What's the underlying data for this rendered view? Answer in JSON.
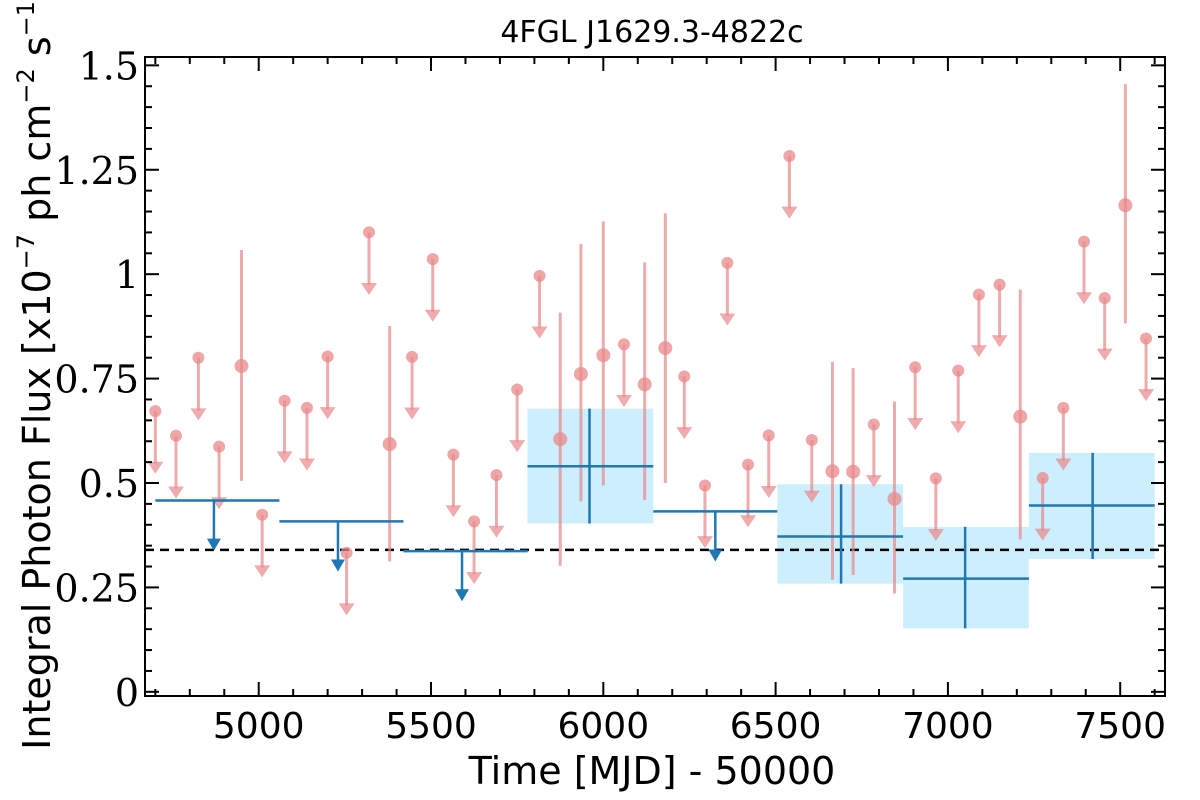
{
  "chart_data": {
    "type": "scatter",
    "title": "4FGL J1629.3-4822c",
    "xlabel": "Time [MJD] - 50000",
    "ylabel_parts": [
      "Integral Photon Flux [x10",
      "−7",
      " ph cm",
      "−2",
      " s",
      "−1",
      "]"
    ],
    "xlim": [
      4670,
      7630
    ],
    "ylim": [
      -0.01,
      1.52
    ],
    "x_ticks": [
      5000,
      5500,
      6000,
      6500,
      7000,
      7500
    ],
    "x_tick_labels": [
      "5000",
      "5500",
      "6000",
      "6500",
      "7000",
      "7500"
    ],
    "y_ticks": [
      0,
      0.25,
      0.5,
      0.75,
      1,
      1.25,
      1.5
    ],
    "y_tick_labels": [
      "0",
      "0.25",
      "0.5",
      "0.75",
      "1",
      "1.25",
      "1.5"
    ],
    "reference_flux": 0.34,
    "colors": {
      "short_bins": "#e8888a",
      "long_bins": "#1f77b4",
      "error_box": "#cdeefc",
      "reference_line": "#000000"
    },
    "short_bins_upper_limits": [
      {
        "x": 4700,
        "y": 0.672
      },
      {
        "x": 4760,
        "y": 0.613
      },
      {
        "x": 4825,
        "y": 0.8
      },
      {
        "x": 4885,
        "y": 0.587
      },
      {
        "x": 5010,
        "y": 0.424
      },
      {
        "x": 5075,
        "y": 0.697
      },
      {
        "x": 5140,
        "y": 0.68
      },
      {
        "x": 5200,
        "y": 0.803
      },
      {
        "x": 5255,
        "y": 0.333
      },
      {
        "x": 5320,
        "y": 1.1
      },
      {
        "x": 5445,
        "y": 0.802
      },
      {
        "x": 5505,
        "y": 1.036
      },
      {
        "x": 5565,
        "y": 0.568
      },
      {
        "x": 5625,
        "y": 0.408
      },
      {
        "x": 5690,
        "y": 0.519
      },
      {
        "x": 5750,
        "y": 0.724
      },
      {
        "x": 5815,
        "y": 0.996
      },
      {
        "x": 6060,
        "y": 0.832
      },
      {
        "x": 6235,
        "y": 0.755
      },
      {
        "x": 6295,
        "y": 0.494
      },
      {
        "x": 6360,
        "y": 1.027
      },
      {
        "x": 6420,
        "y": 0.544
      },
      {
        "x": 6480,
        "y": 0.614
      },
      {
        "x": 6540,
        "y": 1.283
      },
      {
        "x": 6605,
        "y": 0.603
      },
      {
        "x": 6785,
        "y": 0.64
      },
      {
        "x": 6905,
        "y": 0.777
      },
      {
        "x": 6965,
        "y": 0.511
      },
      {
        "x": 7030,
        "y": 0.769
      },
      {
        "x": 7090,
        "y": 0.951
      },
      {
        "x": 7150,
        "y": 0.975
      },
      {
        "x": 7275,
        "y": 0.512
      },
      {
        "x": 7335,
        "y": 0.68
      },
      {
        "x": 7395,
        "y": 1.078
      },
      {
        "x": 7455,
        "y": 0.943
      },
      {
        "x": 7575,
        "y": 0.846
      }
    ],
    "short_bins_detections": [
      {
        "x": 4950,
        "y": 0.78,
        "y_low": 0.505,
        "y_high": 1.058
      },
      {
        "x": 5380,
        "y": 0.593,
        "y_low": 0.312,
        "y_high": 0.876
      },
      {
        "x": 5875,
        "y": 0.605,
        "y_low": 0.302,
        "y_high": 0.908
      },
      {
        "x": 5935,
        "y": 0.761,
        "y_low": 0.456,
        "y_high": 1.072
      },
      {
        "x": 6000,
        "y": 0.806,
        "y_low": 0.494,
        "y_high": 1.126
      },
      {
        "x": 6120,
        "y": 0.736,
        "y_low": 0.459,
        "y_high": 1.028
      },
      {
        "x": 6180,
        "y": 0.823,
        "y_low": 0.5,
        "y_high": 1.146
      },
      {
        "x": 6665,
        "y": 0.528,
        "y_low": 0.268,
        "y_high": 0.79
      },
      {
        "x": 6725,
        "y": 0.527,
        "y_low": 0.28,
        "y_high": 0.775
      },
      {
        "x": 6845,
        "y": 0.462,
        "y_low": 0.235,
        "y_high": 0.695
      },
      {
        "x": 7210,
        "y": 0.659,
        "y_low": 0.365,
        "y_high": 0.963
      },
      {
        "x": 7515,
        "y": 1.165,
        "y_low": 0.882,
        "y_high": 1.455
      }
    ],
    "long_bins_upper_limits": [
      {
        "x_start": 4700,
        "x_end": 5060,
        "x_arrow": 4870,
        "y": 0.458
      },
      {
        "x_start": 5060,
        "x_end": 5420,
        "x_arrow": 5230,
        "y": 0.408
      },
      {
        "x_start": 5420,
        "x_end": 5780,
        "x_arrow": 5590,
        "y": 0.337
      },
      {
        "x_start": 6145,
        "x_end": 6505,
        "x_arrow": 6325,
        "y": 0.432
      }
    ],
    "long_bins_detections": [
      {
        "x_start": 5780,
        "x_end": 6145,
        "x": 5960,
        "y": 0.54,
        "y_low": 0.403,
        "y_high": 0.678
      },
      {
        "x_start": 6505,
        "x_end": 6870,
        "x": 6690,
        "y": 0.372,
        "y_low": 0.259,
        "y_high": 0.497
      },
      {
        "x_start": 6870,
        "x_end": 7235,
        "x": 7050,
        "y": 0.271,
        "y_low": 0.152,
        "y_high": 0.395
      },
      {
        "x_start": 7235,
        "x_end": 7600,
        "x": 7420,
        "y": 0.446,
        "y_low": 0.318,
        "y_high": 0.572
      }
    ]
  }
}
